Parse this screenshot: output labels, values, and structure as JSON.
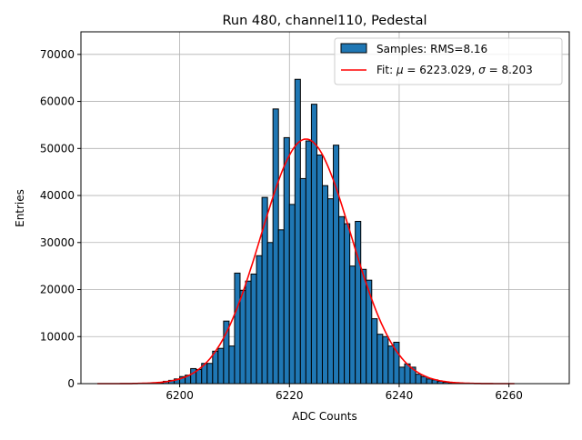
{
  "chart_data": {
    "type": "bar",
    "title": "Run 480, channel110, Pedestal",
    "xlabel": "ADC Counts",
    "ylabel": "Entries",
    "xlim": [
      6182,
      6271
    ],
    "ylim": [
      0,
      74800
    ],
    "xticks": [
      6200,
      6220,
      6240,
      6260
    ],
    "yticks": [
      0,
      10000,
      20000,
      30000,
      40000,
      50000,
      60000,
      70000
    ],
    "grid": true,
    "legend_placement": "top-right",
    "bar_color": "#1f77b4",
    "fit_color": "#ff0000",
    "bin_width": 1,
    "bins": [
      6196,
      6197,
      6198,
      6199,
      6200,
      6201,
      6202,
      6203,
      6204,
      6205,
      6206,
      6207,
      6208,
      6209,
      6210,
      6211,
      6212,
      6213,
      6214,
      6215,
      6216,
      6217,
      6218,
      6219,
      6220,
      6221,
      6222,
      6223,
      6224,
      6225,
      6226,
      6227,
      6228,
      6229,
      6230,
      6231,
      6232,
      6233,
      6234,
      6235,
      6236,
      6237,
      6238,
      6239,
      6240,
      6241,
      6242,
      6243,
      6244,
      6245,
      6246,
      6247,
      6248,
      6249
    ],
    "values": [
      200,
      500,
      700,
      1000,
      1500,
      1800,
      3200,
      3000,
      4300,
      4300,
      6900,
      7500,
      13300,
      8000,
      23500,
      19800,
      21800,
      23300,
      27200,
      39600,
      30000,
      58400,
      32700,
      52300,
      38100,
      64700,
      43600,
      51600,
      59400,
      48600,
      42100,
      39300,
      50700,
      35500,
      34000,
      25000,
      34500,
      24300,
      22000,
      13800,
      10500,
      10000,
      8000,
      8800,
      3500,
      4200,
      3500,
      2000,
      1500,
      1000,
      800,
      500,
      300,
      200
    ],
    "fit": {
      "type": "gaussian",
      "mu": 6223.029,
      "sigma": 8.203,
      "amplitude": 52000,
      "range": [
        6185,
        6261
      ]
    },
    "legend": [
      {
        "label": "Samples: RMS=8.16",
        "kind": "patch"
      },
      {
        "label_prefix": "Fit: ",
        "mu_symbol": "μ",
        "mu_text": " = 6223.029, ",
        "sigma_symbol": "σ",
        "sigma_text": " = 8.203",
        "kind": "line"
      }
    ]
  }
}
